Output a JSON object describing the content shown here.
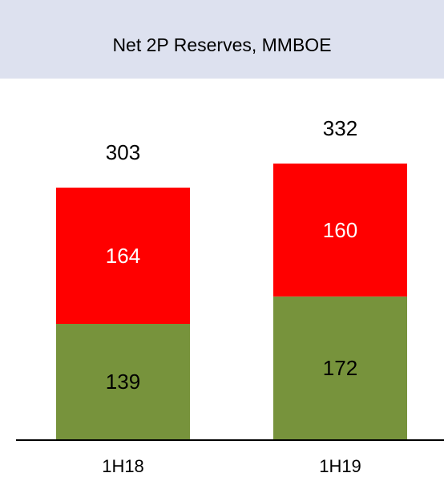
{
  "chart_data": {
    "type": "stacked_bar",
    "title": "Net 2P Reserves, MMBOE",
    "categories": [
      "1H18",
      "1H19"
    ],
    "series": [
      {
        "color": "#77933c",
        "values": [
          139,
          172
        ]
      },
      {
        "color": "#ff0000",
        "values": [
          164,
          160
        ]
      }
    ],
    "totals": [
      303,
      332
    ]
  }
}
